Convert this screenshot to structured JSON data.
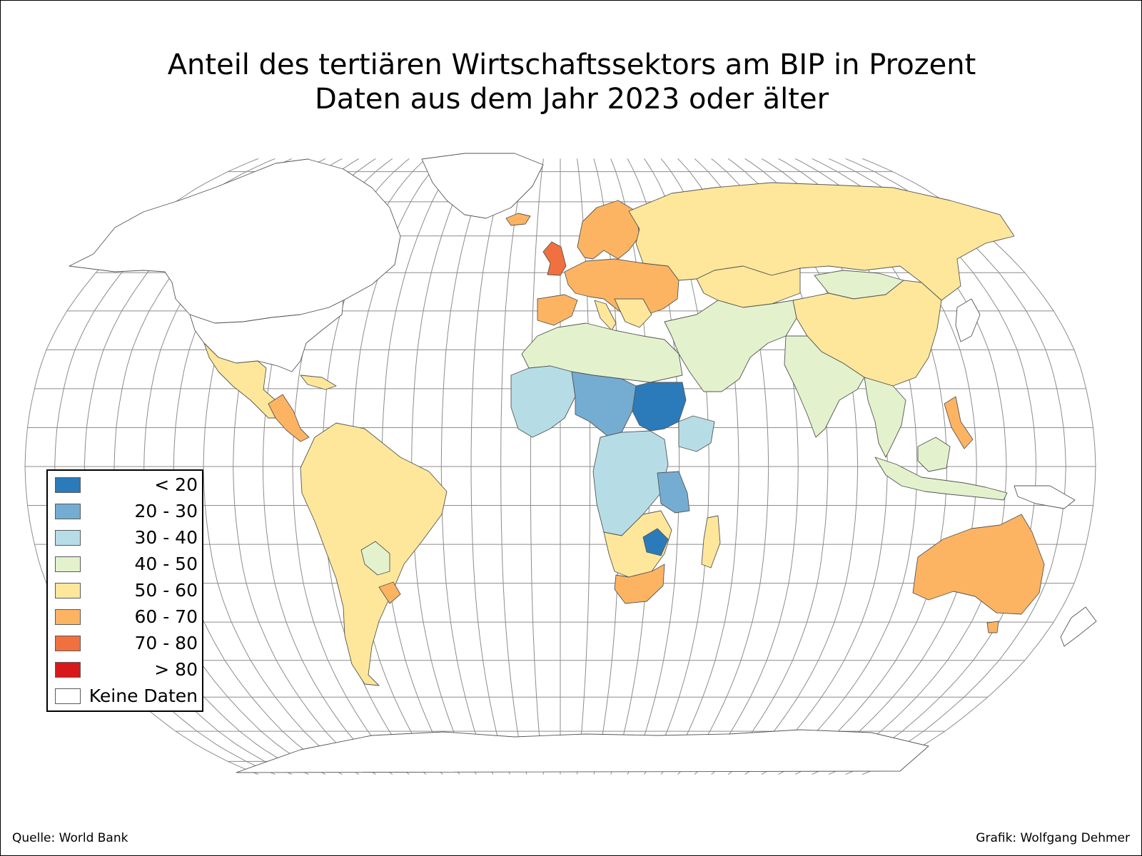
{
  "title": {
    "line1": "Anteil des tertiären Wirtschaftssektors am BIP in Prozent",
    "line2": "Daten aus dem Jahr 2023 oder älter"
  },
  "legend": {
    "items": [
      {
        "label": "< 20",
        "color": "#2b7bba"
      },
      {
        "label": "20 - 30",
        "color": "#74add1"
      },
      {
        "label": "30 - 40",
        "color": "#b6dde6"
      },
      {
        "label": "40 - 50",
        "color": "#e3f2cd"
      },
      {
        "label": "50 - 60",
        "color": "#fee79a"
      },
      {
        "label": "60 - 70",
        "color": "#fdb462"
      },
      {
        "label": "70 - 80",
        "color": "#f07040"
      },
      {
        "label": "> 80",
        "color": "#d7191c"
      },
      {
        "label": "Keine Daten",
        "color": "#ffffff"
      }
    ]
  },
  "map": {
    "projection": "Robinson",
    "regions": [
      {
        "name": "Russland",
        "class": "50 - 60"
      },
      {
        "name": "Kanada",
        "class": "Keine Daten"
      },
      {
        "name": "USA",
        "class": "Keine Daten"
      },
      {
        "name": "Grönland",
        "class": "Keine Daten"
      },
      {
        "name": "Alaska",
        "class": "Keine Daten"
      },
      {
        "name": "China",
        "class": "50 - 60"
      },
      {
        "name": "Mongolei",
        "class": "40 - 50"
      },
      {
        "name": "Kasachstan",
        "class": "50 - 60"
      },
      {
        "name": "Indien",
        "class": "40 - 50"
      },
      {
        "name": "Naher Osten",
        "class": "40 - 50"
      },
      {
        "name": "Europa",
        "class": "60 - 70"
      },
      {
        "name": "Skandinavien",
        "class": "60 - 70"
      },
      {
        "name": "Grossbritannien",
        "class": "70 - 80"
      },
      {
        "name": "Nordafrika",
        "class": "40 - 50"
      },
      {
        "name": "Westafrika",
        "class": "30 - 40"
      },
      {
        "name": "Niger / Tschad",
        "class": "20 - 30"
      },
      {
        "name": "Sudan",
        "class": "< 20"
      },
      {
        "name": "Äthiopien",
        "class": "30 - 40"
      },
      {
        "name": "Zentralafrika",
        "class": "30 - 40"
      },
      {
        "name": "Tansania",
        "class": "20 - 30"
      },
      {
        "name": "Südliches Afrika",
        "class": "50 - 60"
      },
      {
        "name": "Simbabwe",
        "class": "< 20"
      },
      {
        "name": "Südafrika",
        "class": "60 - 70"
      },
      {
        "name": "Madagaskar",
        "class": "50 - 60"
      },
      {
        "name": "Mexiko",
        "class": "50 - 60"
      },
      {
        "name": "Südamerika",
        "class": "50 - 60"
      },
      {
        "name": "Paraguay",
        "class": "40 - 50"
      },
      {
        "name": "Uruguay",
        "class": "60 - 70"
      },
      {
        "name": "Südostasien",
        "class": "40 - 50"
      },
      {
        "name": "Philippinen",
        "class": "60 - 70"
      },
      {
        "name": "Australien",
        "class": "60 - 70"
      },
      {
        "name": "Neuseeland",
        "class": "Keine Daten"
      },
      {
        "name": "Antarktis",
        "class": "Keine Daten"
      }
    ]
  },
  "credits": {
    "source": "Quelle: World Bank",
    "author": "Grafik: Wolfgang Dehmer"
  }
}
